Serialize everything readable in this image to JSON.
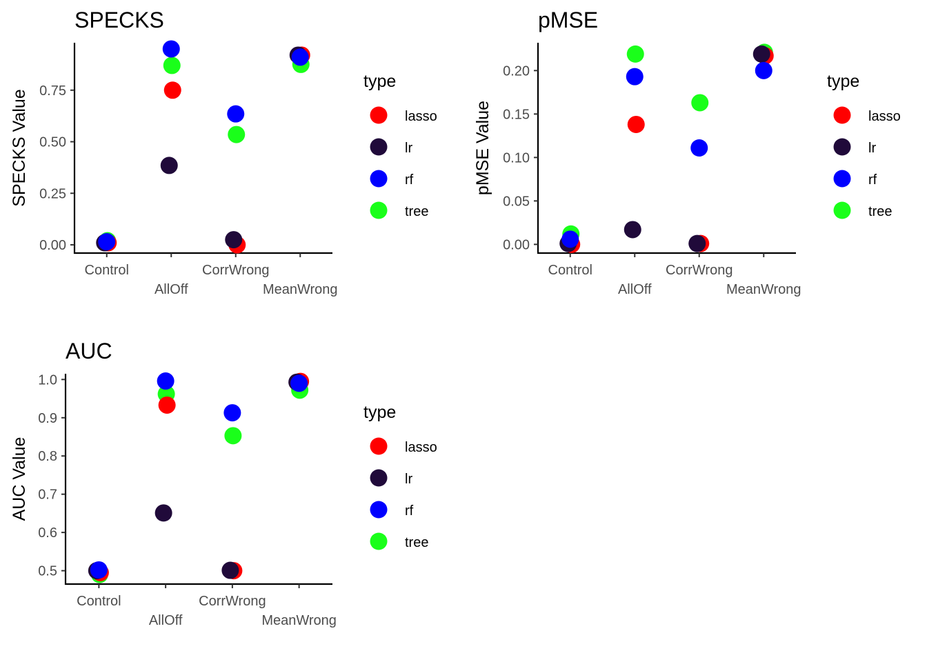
{
  "legend": {
    "title": "type",
    "entries": [
      "lasso",
      "lr",
      "rf",
      "tree"
    ]
  },
  "colors": {
    "lasso": "#ff0000",
    "lr": "#200a3a",
    "rf": "#0000ff",
    "tree": "#1aff1a"
  },
  "chart_data": [
    {
      "type": "scatter",
      "title": "SPECKS",
      "xlabel": "",
      "ylabel": "SPECKS Value",
      "categories": [
        "Control",
        "AllOff",
        "CorrWrong",
        "MeanWrong"
      ],
      "ylim": [
        -0.04,
        0.98
      ],
      "yticks": [
        "0.00",
        "0.25",
        "0.50",
        "0.75"
      ],
      "series": [
        {
          "name": "lasso",
          "values": [
            0.01,
            0.75,
            0.0,
            0.92
          ]
        },
        {
          "name": "lr",
          "values": [
            0.01,
            0.385,
            0.025,
            0.92
          ]
        },
        {
          "name": "rf",
          "values": [
            0.015,
            0.95,
            0.635,
            0.91
          ]
        },
        {
          "name": "tree",
          "values": [
            0.02,
            0.87,
            0.535,
            0.875
          ]
        }
      ]
    },
    {
      "type": "scatter",
      "title": "pMSE",
      "xlabel": "",
      "ylabel": "pMSE Value",
      "categories": [
        "Control",
        "AllOff",
        "CorrWrong",
        "MeanWrong"
      ],
      "ylim": [
        -0.01,
        0.232
      ],
      "yticks": [
        "0.00",
        "0.05",
        "0.10",
        "0.15",
        "0.20"
      ],
      "series": [
        {
          "name": "lasso",
          "values": [
            0.0,
            0.138,
            0.001,
            0.217
          ]
        },
        {
          "name": "lr",
          "values": [
            0.001,
            0.017,
            0.001,
            0.219
          ]
        },
        {
          "name": "rf",
          "values": [
            0.006,
            0.193,
            0.111,
            0.2
          ]
        },
        {
          "name": "tree",
          "values": [
            0.012,
            0.219,
            0.163,
            0.221
          ]
        }
      ]
    },
    {
      "type": "scatter",
      "title": "AUC",
      "xlabel": "",
      "ylabel": "AUC Value",
      "categories": [
        "Control",
        "AllOff",
        "CorrWrong",
        "MeanWrong"
      ],
      "ylim": [
        0.465,
        1.015
      ],
      "yticks": [
        "0.5",
        "0.6",
        "0.7",
        "0.8",
        "0.9",
        "1.0"
      ],
      "series": [
        {
          "name": "lasso",
          "values": [
            0.495,
            0.933,
            0.5,
            0.995
          ]
        },
        {
          "name": "lr",
          "values": [
            0.5,
            0.651,
            0.501,
            0.993
          ]
        },
        {
          "name": "rf",
          "values": [
            0.502,
            0.996,
            0.913,
            0.99
          ]
        },
        {
          "name": "tree",
          "values": [
            0.49,
            0.962,
            0.853,
            0.972
          ]
        }
      ]
    }
  ]
}
